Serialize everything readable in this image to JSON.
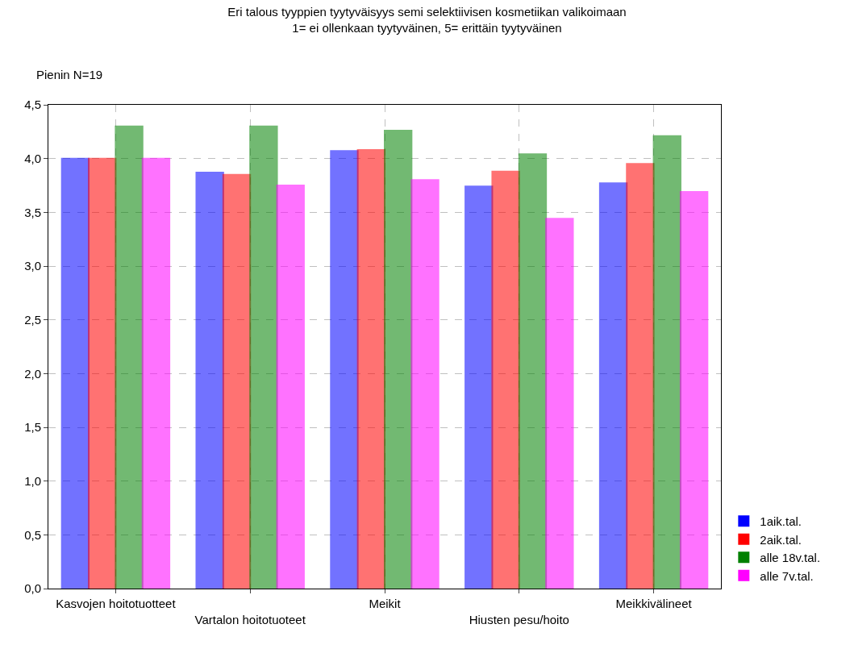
{
  "chart_data": {
    "type": "bar",
    "title": "Eri talous tyyppien tyytyväisyys semi selektiivisen kosmetiikan valikoimaan",
    "subtitle": "1= ei ollenkaan tyytyväinen, 5= erittäin tyytyväinen",
    "annotations": [
      "Pienin N=19"
    ],
    "categories": [
      "Kasvojen hoitotuotteet",
      "Vartalon hoitotuoteet",
      "Meikit",
      "Hiusten pesu/hoito",
      "Meikkivälineet"
    ],
    "series": [
      {
        "name": "1aik.tal.",
        "color": "#0000ff",
        "values": [
          4.0,
          3.87,
          4.07,
          3.74,
          3.77
        ]
      },
      {
        "name": "2aik.tal.",
        "color": "#ff0000",
        "values": [
          4.0,
          3.85,
          4.08,
          3.88,
          3.95
        ]
      },
      {
        "name": "alle 18v.tal.",
        "color": "#008000",
        "values": [
          4.3,
          4.3,
          4.26,
          4.04,
          4.21
        ]
      },
      {
        "name": "alle 7v.tal.",
        "color": "#ff00ff",
        "values": [
          4.0,
          3.75,
          3.8,
          3.44,
          3.69
        ]
      }
    ],
    "ylim": [
      0,
      4.5
    ],
    "yticks": [
      {
        "value": 0,
        "label": "0,0"
      },
      {
        "value": 0.5,
        "label": "0,5"
      },
      {
        "value": 1,
        "label": "1,0"
      },
      {
        "value": 1.5,
        "label": "1,5"
      },
      {
        "value": 2,
        "label": "2,0"
      },
      {
        "value": 2.5,
        "label": "2,5"
      },
      {
        "value": 3,
        "label": "3,0"
      },
      {
        "value": 3.5,
        "label": "3,5"
      },
      {
        "value": 4,
        "label": "4,0"
      },
      {
        "value": 4.5,
        "label": "4,5"
      }
    ],
    "grid": true,
    "legend": "bottom right"
  }
}
